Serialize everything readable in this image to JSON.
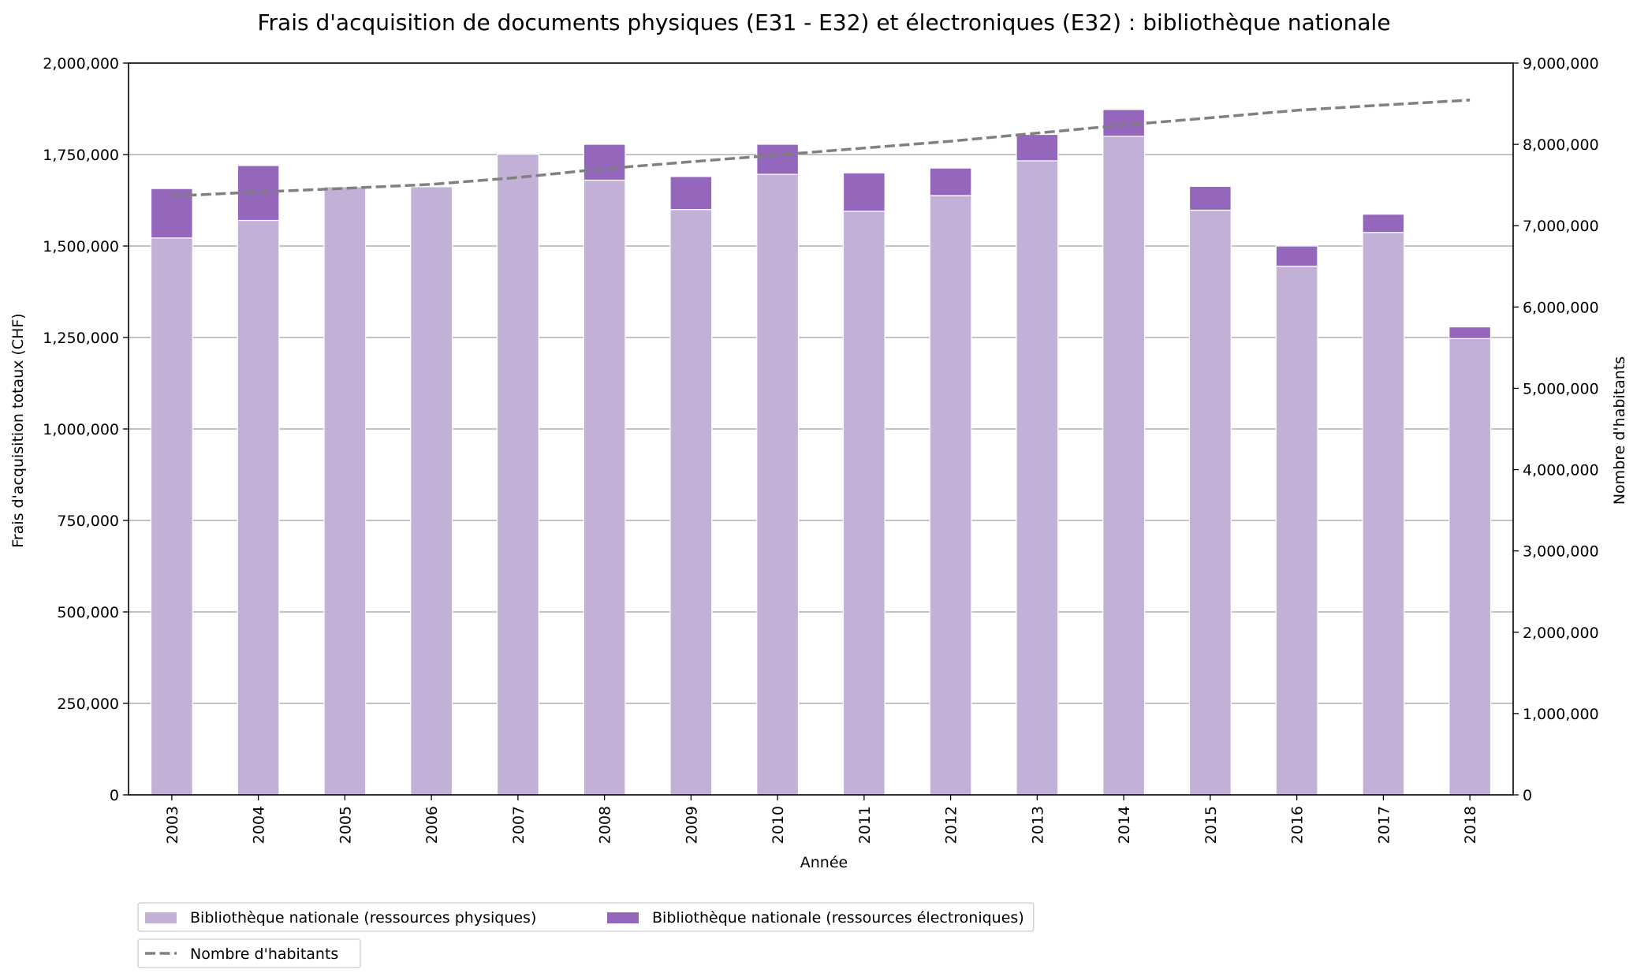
{
  "chart_data": {
    "type": "bar",
    "title": "Frais d'acquisition de documents physiques (E31 - E32) et électroniques (E32) : bibliothèque nationale",
    "xlabel": "Année",
    "ylabel": "Frais d'acquisition totaux (CHF)",
    "y2label": "Nombre d'habitants",
    "ylim": [
      0,
      2000000
    ],
    "y2lim": [
      0,
      9000000
    ],
    "stacked": true,
    "grid": "horizontal",
    "legend_position": "bottom-left, below chart",
    "categories": [
      "2003",
      "2004",
      "2005",
      "2006",
      "2007",
      "2008",
      "2009",
      "2010",
      "2011",
      "2012",
      "2013",
      "2014",
      "2015",
      "2016",
      "2017",
      "2018"
    ],
    "yticks": [
      "0",
      "250,000",
      "500,000",
      "750,000",
      "1,000,000",
      "1,250,000",
      "1,500,000",
      "1,750,000",
      "2,000,000"
    ],
    "y2ticks": [
      "0",
      "1,000,000",
      "2,000,000",
      "3,000,000",
      "4,000,000",
      "5,000,000",
      "6,000,000",
      "7,000,000",
      "8,000,000",
      "9,000,000"
    ],
    "series": [
      {
        "name": "Bibliothèque nationale (ressources physiques)",
        "kind": "bar",
        "color": "#c3b0d6",
        "values": [
          1522000,
          1570000,
          1662000,
          1662000,
          1751000,
          1680000,
          1600000,
          1696000,
          1595000,
          1638000,
          1733000,
          1800000,
          1598000,
          1445000,
          1537000,
          1247000
        ]
      },
      {
        "name": "Bibliothèque nationale (ressources électroniques)",
        "kind": "bar",
        "color": "#9467bd",
        "values": [
          135000,
          150000,
          0,
          0,
          0,
          98000,
          90000,
          82000,
          105000,
          75000,
          72000,
          73000,
          65000,
          55000,
          50000,
          32000
        ]
      },
      {
        "name": "Nombre d'habitants",
        "kind": "line",
        "axis": "y2",
        "color": "#808080",
        "values": [
          7364000,
          7415000,
          7459000,
          7509000,
          7593000,
          7701000,
          7786000,
          7870000,
          7955000,
          8039000,
          8139000,
          8238000,
          8327000,
          8419000,
          8484000,
          8545000
        ]
      }
    ]
  }
}
